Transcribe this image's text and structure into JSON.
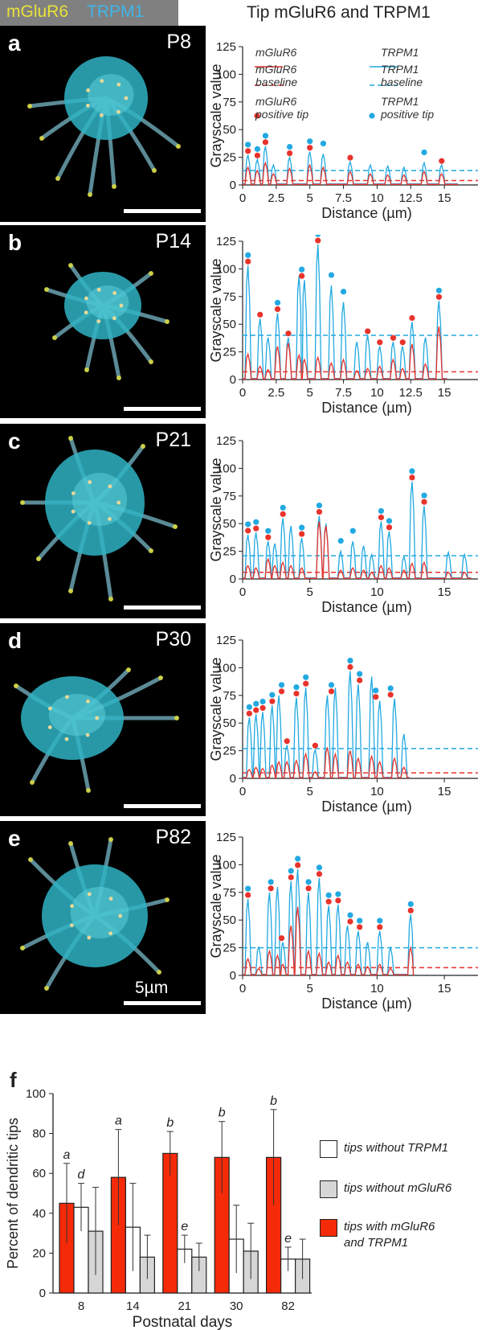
{
  "header": {
    "label_mglur6": "mGluR6",
    "label_trpm1": "TRPM1",
    "title": "Tip mGluR6 and TRPM1"
  },
  "colors": {
    "mglur6": "#e8332c",
    "trpm1": "#22a9e1",
    "yellow": "#e8e13a",
    "bar_with": "#f52a08",
    "bar_gray": "#d6d6d6"
  },
  "panels": [
    {
      "letter": "a",
      "age": "P8"
    },
    {
      "letter": "b",
      "age": "P14"
    },
    {
      "letter": "c",
      "age": "P21"
    },
    {
      "letter": "d",
      "age": "P30"
    },
    {
      "letter": "e",
      "age": "P82",
      "scale_label": "5µm"
    }
  ],
  "legend": {
    "mglur6": "mGluR6",
    "mglur6_baseline_1": "mGluR6",
    "mglur6_baseline_2": "baseline",
    "mglur6_tip_1": "mGluR6",
    "mglur6_tip_2": "positive tip",
    "trpm1": "TRPM1",
    "trpm1_baseline_1": "TRPM1",
    "trpm1_baseline_2": "baseline",
    "trpm1_tip_1": "TRPM1",
    "trpm1_tip_2": "positive tip"
  },
  "chart_data": [
    {
      "type": "line",
      "panel": "a",
      "xlabel": "Distance (µm)",
      "ylabel": "Grayscale value",
      "xlim": [
        0,
        17.5
      ],
      "ylim": [
        0,
        125
      ],
      "xticks": [
        0,
        2.5,
        5,
        7.5,
        10,
        12.5,
        15
      ],
      "yticks": [
        0,
        25,
        50,
        75,
        100,
        125
      ],
      "trpm1_baseline": 13,
      "mglur6_baseline": 4,
      "peaks": [
        [
          0.4,
          27,
          16
        ],
        [
          1.1,
          23,
          13
        ],
        [
          1.7,
          35,
          20
        ],
        [
          2.3,
          18,
          10
        ],
        [
          3.5,
          25,
          15
        ],
        [
          5.0,
          30,
          18
        ],
        [
          6.0,
          28,
          16
        ],
        [
          8.0,
          21,
          12
        ],
        [
          9.5,
          18,
          10
        ],
        [
          10.8,
          17,
          9
        ],
        [
          12.0,
          16,
          9
        ],
        [
          13.5,
          20,
          12
        ],
        [
          14.8,
          18,
          10
        ]
      ],
      "tip_markers": [
        [
          0.4,
          1,
          1
        ],
        [
          1.1,
          1,
          1
        ],
        [
          1.7,
          1,
          1
        ],
        [
          3.5,
          1,
          1
        ],
        [
          5.0,
          1,
          1
        ],
        [
          6.0,
          0,
          1
        ],
        [
          8.0,
          1,
          0
        ],
        [
          13.5,
          0,
          1
        ],
        [
          14.8,
          1,
          0
        ]
      ],
      "x_end": 16
    },
    {
      "type": "line",
      "panel": "b",
      "xlabel": "Distance (µm)",
      "ylabel": "Grayscale value",
      "xlim": [
        0,
        17.5
      ],
      "ylim": [
        0,
        125
      ],
      "xticks": [
        0,
        2.5,
        5,
        7.5,
        10,
        12.5,
        15
      ],
      "yticks": [
        0,
        25,
        50,
        75,
        100,
        125
      ],
      "trpm1_baseline": 40,
      "mglur6_baseline": 7,
      "peaks": [
        [
          0.4,
          103,
          23
        ],
        [
          1.3,
          55,
          12
        ],
        [
          1.9,
          38,
          9
        ],
        [
          2.6,
          60,
          30
        ],
        [
          3.4,
          38,
          33
        ],
        [
          4.2,
          94,
          22
        ],
        [
          4.6,
          90,
          18
        ],
        [
          5.6,
          122,
          20
        ],
        [
          6.6,
          85,
          15
        ],
        [
          7.5,
          70,
          18
        ],
        [
          8.5,
          34,
          8
        ],
        [
          9.3,
          40,
          10
        ],
        [
          10.2,
          30,
          12
        ],
        [
          11.2,
          34,
          18
        ],
        [
          11.9,
          30,
          10
        ],
        [
          12.6,
          52,
          32
        ],
        [
          13.6,
          38,
          14
        ],
        [
          14.6,
          71,
          48
        ]
      ],
      "tip_markers": [
        [
          0.4,
          1,
          1
        ],
        [
          1.3,
          1,
          0
        ],
        [
          2.6,
          1,
          1
        ],
        [
          3.4,
          1,
          0
        ],
        [
          4.4,
          1,
          1
        ],
        [
          5.6,
          1,
          1
        ],
        [
          6.6,
          0,
          1
        ],
        [
          7.5,
          0,
          1
        ],
        [
          9.3,
          1,
          0
        ],
        [
          10.2,
          1,
          0
        ],
        [
          11.2,
          1,
          0
        ],
        [
          11.9,
          1,
          0
        ],
        [
          12.6,
          1,
          0
        ],
        [
          14.6,
          1,
          1
        ]
      ],
      "x_end": 15.2
    },
    {
      "type": "line",
      "panel": "c",
      "xlabel": "Distance (µm)",
      "ylabel": "Grayscale value",
      "xlim": [
        0,
        17.5
      ],
      "ylim": [
        0,
        125
      ],
      "xticks": [
        0,
        5,
        10,
        15
      ],
      "yticks": [
        0,
        25,
        50,
        75,
        100,
        125
      ],
      "trpm1_baseline": 21,
      "mglur6_baseline": 6,
      "peaks": [
        [
          0.4,
          40,
          12
        ],
        [
          1.0,
          42,
          10
        ],
        [
          1.9,
          34,
          18
        ],
        [
          2.4,
          32,
          12
        ],
        [
          3.0,
          55,
          15
        ],
        [
          3.6,
          48,
          12
        ],
        [
          4.4,
          37,
          10
        ],
        [
          5.7,
          57,
          52
        ],
        [
          6.2,
          50,
          48
        ],
        [
          7.3,
          25,
          8
        ],
        [
          8.2,
          34,
          10
        ],
        [
          9.0,
          30,
          8
        ],
        [
          9.6,
          22,
          6
        ],
        [
          10.3,
          52,
          12
        ],
        [
          10.9,
          43,
          10
        ],
        [
          12.0,
          20,
          8
        ],
        [
          12.6,
          88,
          14
        ],
        [
          13.5,
          66,
          15
        ],
        [
          15.3,
          24,
          6
        ],
        [
          16.5,
          22,
          6
        ]
      ],
      "tip_markers": [
        [
          0.4,
          1,
          1
        ],
        [
          1.0,
          1,
          1
        ],
        [
          1.9,
          1,
          1
        ],
        [
          3.0,
          1,
          1
        ],
        [
          4.4,
          1,
          1
        ],
        [
          5.7,
          1,
          1
        ],
        [
          7.3,
          0,
          1
        ],
        [
          8.2,
          0,
          1
        ],
        [
          10.3,
          1,
          1
        ],
        [
          10.9,
          1,
          1
        ],
        [
          12.6,
          1,
          1
        ],
        [
          13.5,
          1,
          1
        ]
      ],
      "x_end": 17
    },
    {
      "type": "line",
      "panel": "d",
      "xlabel": "Distance (µm)",
      "ylabel": "Grayscale value",
      "xlim": [
        0,
        17.5
      ],
      "ylim": [
        0,
        125
      ],
      "xticks": [
        0,
        5,
        10,
        15
      ],
      "yticks": [
        0,
        25,
        50,
        75,
        100,
        125
      ],
      "trpm1_baseline": 27,
      "mglur6_baseline": 5,
      "peaks": [
        [
          0.5,
          55,
          8
        ],
        [
          1.0,
          58,
          10
        ],
        [
          1.5,
          60,
          9
        ],
        [
          2.2,
          66,
          12
        ],
        [
          2.7,
          75,
          15
        ],
        [
          3.3,
          30,
          15
        ],
        [
          4.0,
          73,
          16
        ],
        [
          4.7,
          82,
          22
        ],
        [
          5.4,
          26,
          6
        ],
        [
          6.3,
          75,
          28
        ],
        [
          6.9,
          82,
          22
        ],
        [
          8.0,
          97,
          25
        ],
        [
          8.6,
          85,
          18
        ],
        [
          9.6,
          92,
          20
        ],
        [
          10.2,
          70,
          15
        ],
        [
          11.3,
          72,
          18
        ],
        [
          12.0,
          40,
          10
        ]
      ],
      "tip_markers": [
        [
          0.5,
          1,
          1
        ],
        [
          1.0,
          1,
          1
        ],
        [
          1.5,
          1,
          1
        ],
        [
          2.2,
          1,
          1
        ],
        [
          2.9,
          1,
          1
        ],
        [
          3.3,
          1,
          0
        ],
        [
          4.0,
          1,
          1
        ],
        [
          4.7,
          1,
          1
        ],
        [
          5.4,
          1,
          0
        ],
        [
          6.6,
          1,
          1
        ],
        [
          8.0,
          1,
          1
        ],
        [
          8.7,
          1,
          1
        ],
        [
          9.9,
          1,
          1
        ],
        [
          11.0,
          1,
          1
        ]
      ],
      "x_end": 12.4
    },
    {
      "type": "line",
      "panel": "e",
      "xlabel": "Distance (µm)",
      "ylabel": "Grayscale value",
      "xlim": [
        0,
        17.5
      ],
      "ylim": [
        0,
        125
      ],
      "xticks": [
        0,
        5,
        10,
        15
      ],
      "yticks": [
        0,
        25,
        50,
        75,
        100,
        125
      ],
      "trpm1_baseline": 25,
      "mglur6_baseline": 7,
      "peaks": [
        [
          0.4,
          69,
          15
        ],
        [
          1.2,
          26,
          6
        ],
        [
          2.0,
          75,
          22
        ],
        [
          2.6,
          80,
          18
        ],
        [
          3.0,
          30,
          10
        ],
        [
          3.6,
          85,
          45
        ],
        [
          4.1,
          96,
          62
        ],
        [
          4.9,
          75,
          22
        ],
        [
          5.7,
          88,
          20
        ],
        [
          6.4,
          63,
          12
        ],
        [
          7.1,
          64,
          18
        ],
        [
          7.8,
          45,
          12
        ],
        [
          8.6,
          40,
          10
        ],
        [
          9.3,
          30,
          8
        ],
        [
          10.2,
          40,
          10
        ],
        [
          11.0,
          25,
          6
        ],
        [
          12.5,
          55,
          25
        ]
      ],
      "tip_markers": [
        [
          0.4,
          1,
          1
        ],
        [
          2.1,
          1,
          1
        ],
        [
          2.9,
          1,
          0
        ],
        [
          3.6,
          1,
          1
        ],
        [
          4.1,
          1,
          1
        ],
        [
          4.9,
          1,
          1
        ],
        [
          5.7,
          1,
          1
        ],
        [
          6.4,
          1,
          1
        ],
        [
          7.1,
          1,
          1
        ],
        [
          8.0,
          1,
          1
        ],
        [
          8.7,
          1,
          1
        ],
        [
          10.2,
          1,
          1
        ],
        [
          12.5,
          1,
          1
        ]
      ],
      "x_end": 12.7
    },
    {
      "type": "bar",
      "panel": "f",
      "xlabel": "Postnatal days",
      "ylabel": "Percent of  dendritic tips",
      "ylim": [
        0,
        100
      ],
      "yticks": [
        0,
        20,
        40,
        60,
        80,
        100
      ],
      "categories": [
        "8",
        "14",
        "21",
        "30",
        "82"
      ],
      "series": [
        {
          "name": "tips with mGluR6 and TRPM1",
          "values": [
            45,
            58,
            70,
            68,
            68
          ],
          "err": [
            20,
            24,
            11,
            18,
            24
          ],
          "labels": [
            "a",
            "a",
            "b",
            "b",
            "b"
          ]
        },
        {
          "name": "tips without TRPM1",
          "values": [
            43,
            33,
            22,
            27,
            17
          ],
          "err": [
            12,
            22,
            7,
            17,
            6
          ],
          "labels": [
            "d",
            "",
            "e",
            "",
            "e"
          ]
        },
        {
          "name": "tips without mGluR6",
          "values": [
            31,
            18,
            18,
            21,
            17
          ],
          "err": [
            22,
            11,
            7,
            14,
            10
          ],
          "labels": [
            "",
            "",
            "",
            "",
            ""
          ]
        }
      ],
      "legend_labels": [
        "tips without TRPM1",
        "tips without mGluR6",
        "tips with mGluR6",
        "and TRPM1"
      ]
    }
  ]
}
